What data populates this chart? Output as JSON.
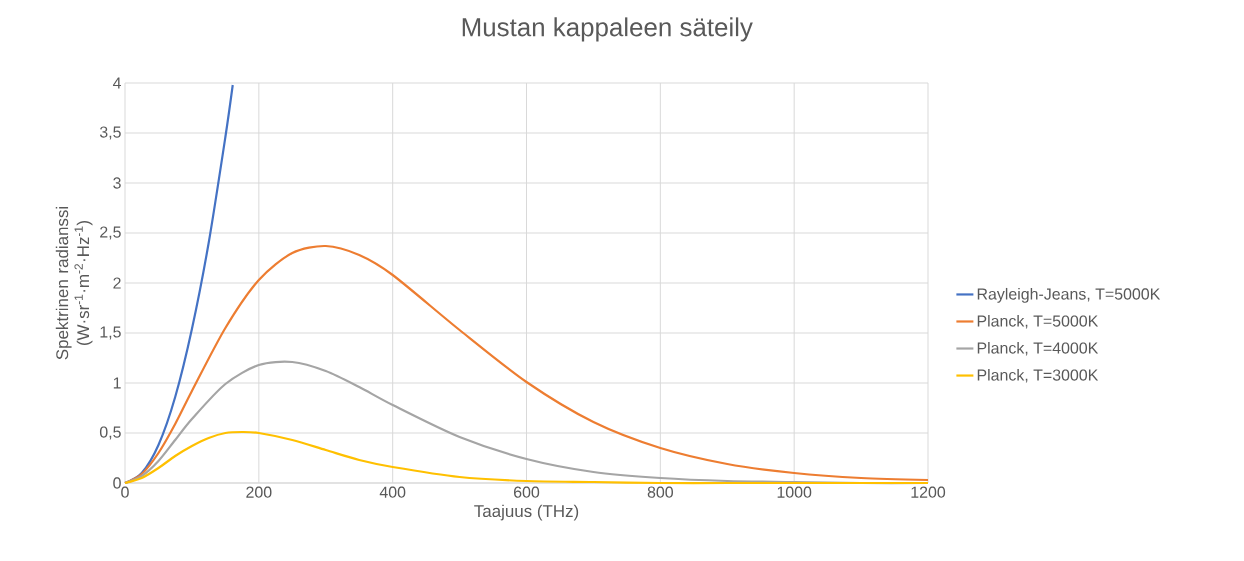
{
  "chart_data": {
    "type": "line",
    "title": "Mustan kappaleen säteily",
    "xlabel": "Taajuus (THz)",
    "ylabel": "Spektrinen radianssi (W·sr$^{-1}$·m$^{-2}$·Hz$^{-1}$)",
    "xlim": [
      0,
      1200
    ],
    "xticks": [
      0,
      200,
      400,
      600,
      800,
      1000,
      1200
    ],
    "ylim": [
      0,
      4
    ],
    "yticks": [
      0,
      {
        "value": 0.5,
        "label": "0,5"
      },
      1,
      {
        "value": 1.5,
        "label": "1,5"
      },
      2,
      {
        "value": 2.5,
        "label": "2,5"
      },
      3,
      {
        "value": 3.5,
        "label": "3,5"
      },
      4
    ],
    "grid": true,
    "legend": "right",
    "marker": "none",
    "line_style": "solid",
    "series": [
      {
        "name": "Rayleigh-Jeans, T=5000K",
        "color": "#4472c4",
        "x": [
          0,
          25,
          50,
          75,
          100,
          125,
          150,
          161
        ],
        "values": [
          0,
          0.1,
          0.38,
          0.86,
          1.54,
          2.4,
          3.46,
          3.98
        ]
      },
      {
        "name": "Planck, T=5000K",
        "color": "#ed7d31",
        "x": [
          0,
          25,
          50,
          75,
          100,
          150,
          200,
          250,
          300,
          350,
          400,
          500,
          600,
          700,
          800,
          900,
          1000,
          1100,
          1200
        ],
        "values": [
          0,
          0.09,
          0.3,
          0.59,
          0.92,
          1.55,
          2.03,
          2.3,
          2.37,
          2.28,
          2.08,
          1.53,
          1.01,
          0.61,
          0.35,
          0.19,
          0.1,
          0.05,
          0.03
        ]
      },
      {
        "name": "Planck, T=4000K",
        "color": "#a5a5a5",
        "x": [
          0,
          25,
          50,
          75,
          100,
          150,
          200,
          250,
          300,
          350,
          400,
          500,
          600,
          700,
          800,
          900,
          1000,
          1100,
          1200
        ],
        "values": [
          0,
          0.07,
          0.22,
          0.43,
          0.64,
          0.99,
          1.18,
          1.21,
          1.12,
          0.96,
          0.78,
          0.46,
          0.24,
          0.11,
          0.05,
          0.02,
          0.01,
          0,
          0
        ]
      },
      {
        "name": "Planck, T=3000K",
        "color": "#ffc000",
        "x": [
          0,
          25,
          50,
          75,
          100,
          125,
          150,
          175,
          200,
          250,
          300,
          350,
          400,
          500,
          600,
          700,
          800,
          900,
          1000,
          1100,
          1200
        ],
        "values": [
          0,
          0.05,
          0.15,
          0.27,
          0.37,
          0.45,
          0.5,
          0.51,
          0.5,
          0.43,
          0.33,
          0.23,
          0.16,
          0.06,
          0.02,
          0.01,
          0,
          0,
          0,
          0,
          0
        ]
      }
    ]
  }
}
